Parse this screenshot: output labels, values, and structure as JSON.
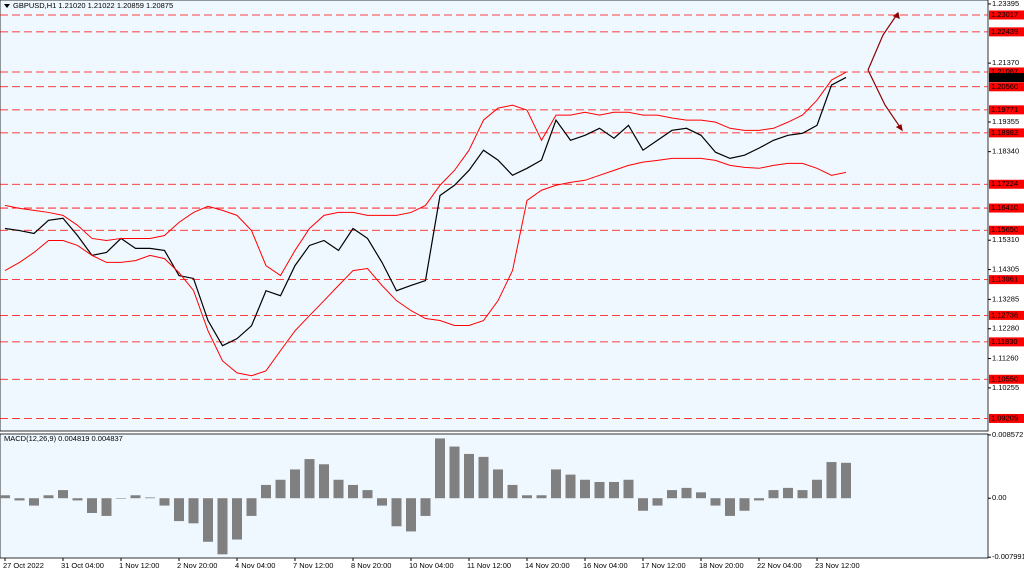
{
  "chart_data": [
    {
      "type": "line",
      "title": "GBPUSD,H1  1.21020 1.21022 1.20859 1.20875",
      "categories": [
        "27 Oct 2022",
        null,
        null,
        null,
        "31 Oct 04:00",
        null,
        null,
        null,
        "1 Nov 12:00",
        null,
        null,
        null,
        "2 Nov 20:00",
        null,
        null,
        null,
        "4 Nov 04:00",
        null,
        null,
        null,
        "7 Nov 12:00",
        null,
        null,
        null,
        "8 Nov 20:00",
        null,
        null,
        null,
        "10 Nov 04:00",
        null,
        null,
        null,
        "11 Nov 12:00",
        null,
        null,
        null,
        "14 Nov 20:00",
        null,
        null,
        null,
        "16 Nov 04:00",
        null,
        null,
        null,
        "17 Nov 12:00",
        null,
        null,
        null,
        "18 Nov 20:00",
        null,
        null,
        null,
        "22 Nov 04:00",
        null,
        null,
        null,
        "23 Nov 12:00",
        null,
        null
      ],
      "series": [
        {
          "color": "#000000",
          "values": [
            1.1571,
            1.1564,
            1.1554,
            1.1599,
            1.1606,
            1.1547,
            1.1479,
            1.1489,
            1.1537,
            1.1503,
            1.1503,
            1.1496,
            1.141,
            1.14,
            1.1256,
            1.117,
            1.1194,
            1.1238,
            1.1358,
            1.1341,
            1.1444,
            1.1513,
            1.153,
            1.1496,
            1.1571,
            1.1537,
            1.1455,
            1.1358,
            1.1376,
            1.1393,
            1.1684,
            1.1719,
            1.177,
            1.1839,
            1.1805,
            1.1753,
            1.1777,
            1.1805,
            1.1942,
            1.1873,
            1.189,
            1.1914,
            1.188,
            1.1924,
            1.1839,
            1.1873,
            1.1907,
            1.1914,
            1.189,
            1.1832,
            1.1811,
            1.1822,
            1.1846,
            1.1873,
            1.189,
            1.1897,
            1.1924,
            1.2062,
            1.2088
          ]
        },
        {
          "color": "#ff0000",
          "values": [
            1.165,
            1.164,
            1.1633,
            1.1626,
            1.1616,
            1.1582,
            1.1537,
            1.153,
            1.1537,
            1.1537,
            1.1537,
            1.1547,
            1.1592,
            1.1626,
            1.1647,
            1.1633,
            1.1616,
            1.1564,
            1.1444,
            1.141,
            1.1496,
            1.1571,
            1.1616,
            1.1626,
            1.1626,
            1.1616,
            1.1616,
            1.1616,
            1.1626,
            1.165,
            1.1719,
            1.177,
            1.1839,
            1.1942,
            1.1983,
            1.1993,
            1.1976,
            1.1873,
            1.1959,
            1.1959,
            1.1969,
            1.1959,
            1.1969,
            1.1969,
            1.1959,
            1.1959,
            1.1949,
            1.1942,
            1.1942,
            1.1935,
            1.1914,
            1.1907,
            1.1907,
            1.1914,
            1.1935,
            1.1959,
            1.201,
            1.2079,
            1.2106
          ]
        },
        {
          "color": "#ff0000",
          "values": [
            1.1427,
            1.1455,
            1.1489,
            1.153,
            1.153,
            1.1513,
            1.1479,
            1.1455,
            1.1455,
            1.1461,
            1.1479,
            1.1468,
            1.142,
            1.1359,
            1.1221,
            1.1118,
            1.1077,
            1.1067,
            1.1084,
            1.1153,
            1.1221,
            1.1273,
            1.1324,
            1.1376,
            1.1427,
            1.1434,
            1.1376,
            1.1324,
            1.129,
            1.1263,
            1.1256,
            1.1239,
            1.1239,
            1.1256,
            1.1324,
            1.1427,
            1.1667,
            1.1702,
            1.1719,
            1.1729,
            1.1736,
            1.1753,
            1.177,
            1.1787,
            1.1798,
            1.1804,
            1.1811,
            1.1811,
            1.1811,
            1.1804,
            1.1787,
            1.178,
            1.1777,
            1.1787,
            1.1794,
            1.1794,
            1.1777,
            1.1753,
            1.1763
          ]
        }
      ],
      "ylim": [
        1.0878,
        1.2353
      ],
      "yticks": [
        {
          "value": 1.23395,
          "label": "1.23395"
        },
        {
          "value": 1.2137,
          "label": "1.21370"
        },
        {
          "value": 1.19355,
          "label": "1.19355"
        },
        {
          "value": 1.1834,
          "label": "1.18340"
        },
        {
          "value": 1.1531,
          "label": "1.15310"
        },
        {
          "value": 1.14305,
          "label": "1.14305"
        },
        {
          "value": 1.13285,
          "label": "1.13285"
        },
        {
          "value": 1.1228,
          "label": "1.12280"
        },
        {
          "value": 1.1126,
          "label": "1.11260"
        },
        {
          "value": 1.10255,
          "label": "1.10255"
        }
      ],
      "levels": [
        {
          "value": 1.23017,
          "label": "1.23017"
        },
        {
          "value": 1.22439,
          "label": "1.22439"
        },
        {
          "value": 1.21067,
          "label": "1.21067"
        },
        {
          "value": 1.2056,
          "label": "1.20560"
        },
        {
          "value": 1.19771,
          "label": "1.19771"
        },
        {
          "value": 1.18982,
          "label": "1.18982"
        },
        {
          "value": 1.17224,
          "label": "1.17224"
        },
        {
          "value": 1.1641,
          "label": "1.16410"
        },
        {
          "value": 1.1565,
          "label": "1.15650"
        },
        {
          "value": 1.13961,
          "label": "1.13961"
        },
        {
          "value": 1.12736,
          "label": "1.12736"
        },
        {
          "value": 1.1183,
          "label": "1.11830"
        },
        {
          "value": 1.1055,
          "label": "1.10550"
        },
        {
          "value": 1.09209,
          "label": "1.09209"
        }
      ],
      "level_color": "#ff0000",
      "current_price": {
        "value": 1.20875,
        "label": "1.20875"
      }
    },
    {
      "type": "bar",
      "title": "MACD(12,26,9) 0.004819 0.004837",
      "color": "#808080",
      "values": [
        0.0004,
        -0.0003,
        -0.001,
        0.0004,
        0.0011,
        -0.0003,
        -0.002,
        -0.0024,
        0.0,
        0.0004,
        0.0001,
        -0.001,
        -0.0031,
        -0.0034,
        -0.0059,
        -0.0076,
        -0.0056,
        -0.0024,
        0.0018,
        0.0025,
        0.0039,
        0.0053,
        0.0046,
        0.0025,
        0.0018,
        0.0011,
        -0.001,
        -0.0038,
        -0.0045,
        -0.0024,
        0.0081,
        0.007,
        0.006,
        0.0056,
        0.0039,
        0.0018,
        0.0004,
        0.0004,
        0.0039,
        0.0032,
        0.0025,
        0.0022,
        0.0022,
        0.0025,
        -0.0017,
        -0.001,
        0.0011,
        0.0014,
        0.0008,
        -0.001,
        -0.0024,
        -0.0017,
        -0.0003,
        0.0011,
        0.0014,
        0.0011,
        0.0025,
        0.0049,
        0.0048
      ],
      "ylim": [
        -0.0081,
        0.0087
      ],
      "yticks": [
        {
          "value": 0.008572,
          "label": "0.008572"
        },
        {
          "value": 0,
          "label": "0.00"
        },
        {
          "value": -0.007991,
          "label": "-0.007991"
        }
      ]
    }
  ]
}
